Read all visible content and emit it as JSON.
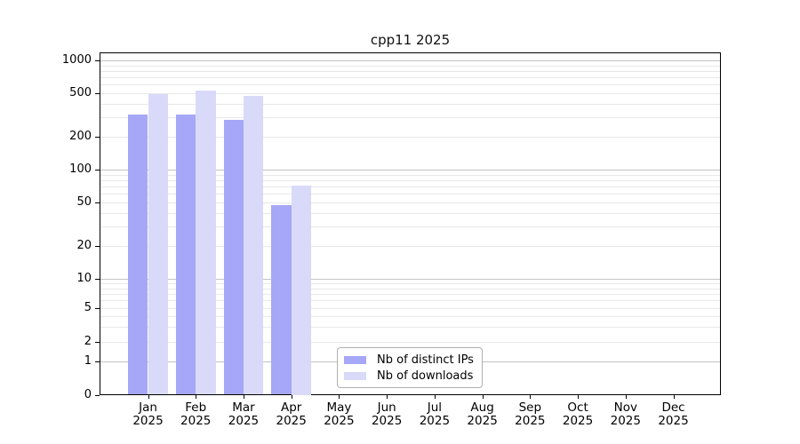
{
  "title": "cpp11 2025",
  "legend": {
    "items": [
      {
        "label": "Nb of distinct IPs",
        "color": "#a7a7f7"
      },
      {
        "label": "Nb of downloads",
        "color": "#d9d9f9"
      }
    ]
  },
  "y_axis": {
    "ticks": [
      {
        "label": "1000",
        "value": 1000
      },
      {
        "label": "500",
        "value": 500
      },
      {
        "label": "200",
        "value": 200
      },
      {
        "label": "100",
        "value": 100
      },
      {
        "label": "50",
        "value": 50
      },
      {
        "label": "20",
        "value": 20
      },
      {
        "label": "10",
        "value": 10
      },
      {
        "label": "5",
        "value": 5
      },
      {
        "label": "2",
        "value": 2
      },
      {
        "label": "1",
        "value": 1
      },
      {
        "label": "0",
        "value": 0
      }
    ]
  },
  "x_axis": {
    "months": [
      "Jan",
      "Feb",
      "Mar",
      "Apr",
      "May",
      "Jun",
      "Jul",
      "Aug",
      "Sep",
      "Oct",
      "Nov",
      "Dec"
    ],
    "year": "2025"
  },
  "chart_data": {
    "type": "bar",
    "title": "cpp11 2025",
    "categories": [
      "Jan 2025",
      "Feb 2025",
      "Mar 2025",
      "Apr 2025",
      "May 2025",
      "Jun 2025",
      "Jul 2025",
      "Aug 2025",
      "Sep 2025",
      "Oct 2025",
      "Nov 2025",
      "Dec 2025"
    ],
    "series": [
      {
        "name": "Nb of distinct IPs",
        "color": "#a7a7f7",
        "values": [
          320,
          320,
          285,
          47,
          0,
          0,
          0,
          0,
          0,
          0,
          0,
          0
        ]
      },
      {
        "name": "Nb of downloads",
        "color": "#d9d9f9",
        "values": [
          490,
          520,
          470,
          72,
          0,
          0,
          0,
          0,
          0,
          0,
          0,
          0
        ]
      }
    ],
    "xlabel": "",
    "ylabel": "",
    "yscale": "log (compressed to 0 at baseline)",
    "ylim": [
      0,
      1000
    ],
    "y_ticks": [
      1000,
      500,
      200,
      100,
      50,
      20,
      10,
      5,
      2,
      1,
      0
    ],
    "grid": "horizontal major+minor",
    "legend_position": "lower center-left inside plot"
  }
}
